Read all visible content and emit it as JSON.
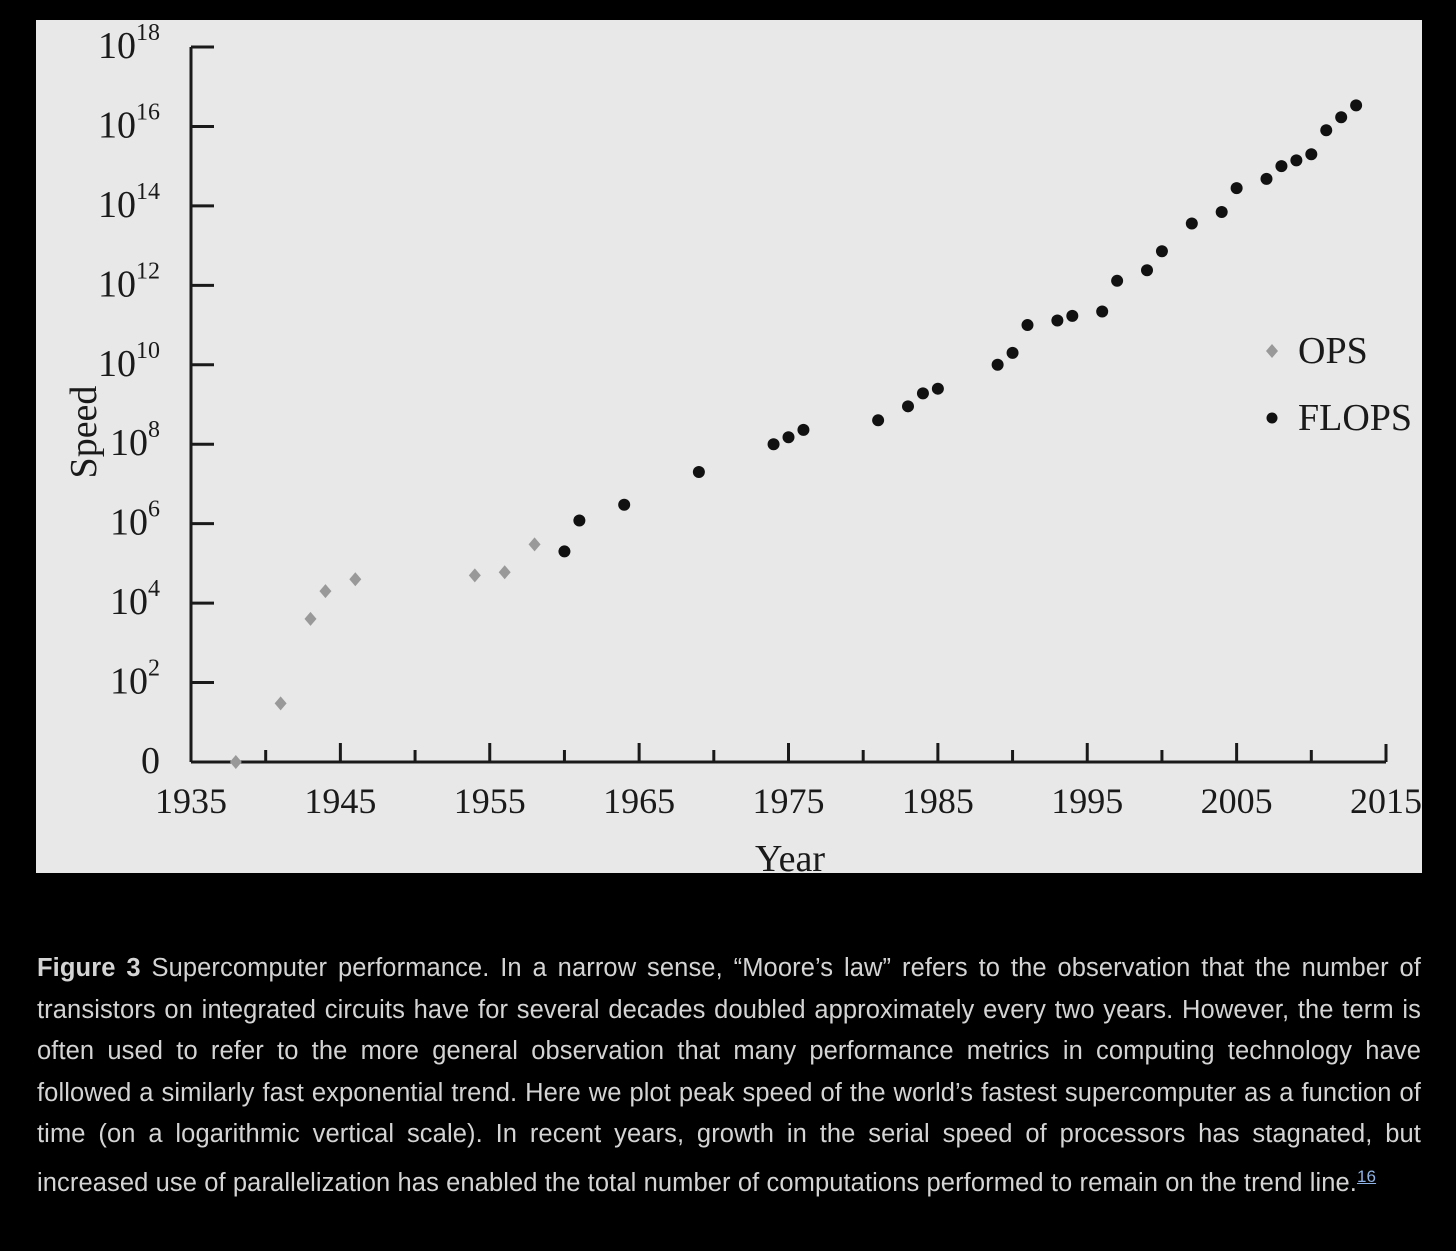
{
  "chart_data": {
    "type": "scatter",
    "xlabel": "Year",
    "ylabel": "Speed",
    "xlim": [
      1935,
      2015
    ],
    "y_scale": "log",
    "ylim_exponent": [
      0,
      18
    ],
    "x_ticks": [
      "1935",
      "1945",
      "1955",
      "1965",
      "1975",
      "1985",
      "1995",
      "2005",
      "2015"
    ],
    "y_ticks": [
      {
        "base": "0",
        "exp": ""
      },
      {
        "base": "10",
        "exp": "2"
      },
      {
        "base": "10",
        "exp": "4"
      },
      {
        "base": "10",
        "exp": "6"
      },
      {
        "base": "10",
        "exp": "8"
      },
      {
        "base": "10",
        "exp": "10"
      },
      {
        "base": "10",
        "exp": "12"
      },
      {
        "base": "10",
        "exp": "14"
      },
      {
        "base": "10",
        "exp": "16"
      },
      {
        "base": "10",
        "exp": "18"
      }
    ],
    "legend_position": "right",
    "series": [
      {
        "name": "OPS",
        "marker": "diamond",
        "color": "#999999",
        "points": [
          [
            1938,
            1
          ],
          [
            1941,
            30
          ],
          [
            1943,
            4000
          ],
          [
            1944,
            20000
          ],
          [
            1946,
            40000
          ],
          [
            1954,
            50000
          ],
          [
            1956,
            60000
          ],
          [
            1958,
            300000
          ]
        ]
      },
      {
        "name": "FLOPS",
        "marker": "circle",
        "color": "#111111",
        "points": [
          [
            1960,
            200000
          ],
          [
            1961,
            1200000
          ],
          [
            1964,
            3000000
          ],
          [
            1969,
            20000000
          ],
          [
            1974,
            100000000
          ],
          [
            1975,
            150000000
          ],
          [
            1976,
            230000000
          ],
          [
            1981,
            400000000
          ],
          [
            1983,
            900000000
          ],
          [
            1984,
            1900000000
          ],
          [
            1985,
            2500000000
          ],
          [
            1989,
            10000000000
          ],
          [
            1990,
            20000000000
          ],
          [
            1991,
            100000000000
          ],
          [
            1993,
            130000000000
          ],
          [
            1994,
            170000000000
          ],
          [
            1996,
            220000000000
          ],
          [
            1997,
            1300000000000
          ],
          [
            1999,
            2400000000000
          ],
          [
            2000,
            7200000000000
          ],
          [
            2002,
            36000000000000
          ],
          [
            2004,
            70000000000000
          ],
          [
            2005,
            280000000000000
          ],
          [
            2007,
            480000000000000
          ],
          [
            2008,
            1000000000000000
          ],
          [
            2009,
            1400000000000000
          ],
          [
            2010,
            2000000000000000
          ],
          [
            2011,
            8000000000000000
          ],
          [
            2012,
            17000000000000000
          ],
          [
            2013,
            34000000000000000
          ]
        ]
      }
    ]
  },
  "caption": {
    "label": "Figure 3",
    "text": " Supercomputer performance. In a narrow sense, “Moore’s law” refers to the observation that the number of transistors on integrated circuits have for several decades doubled approximately every two years. However, the term is often used to refer to the more general observation that many performance metrics in computing technology have followed a similarly fast exponential trend. Here we plot peak speed of the world’s fastest supercomputer as a function of time (on a logarithmic vertical scale). In recent years, growth in the serial speed of processors has stagnated, but increased use of parallelization has enabled the total number of compu­tations performed to remain on the trend line.",
    "ref": "16"
  }
}
